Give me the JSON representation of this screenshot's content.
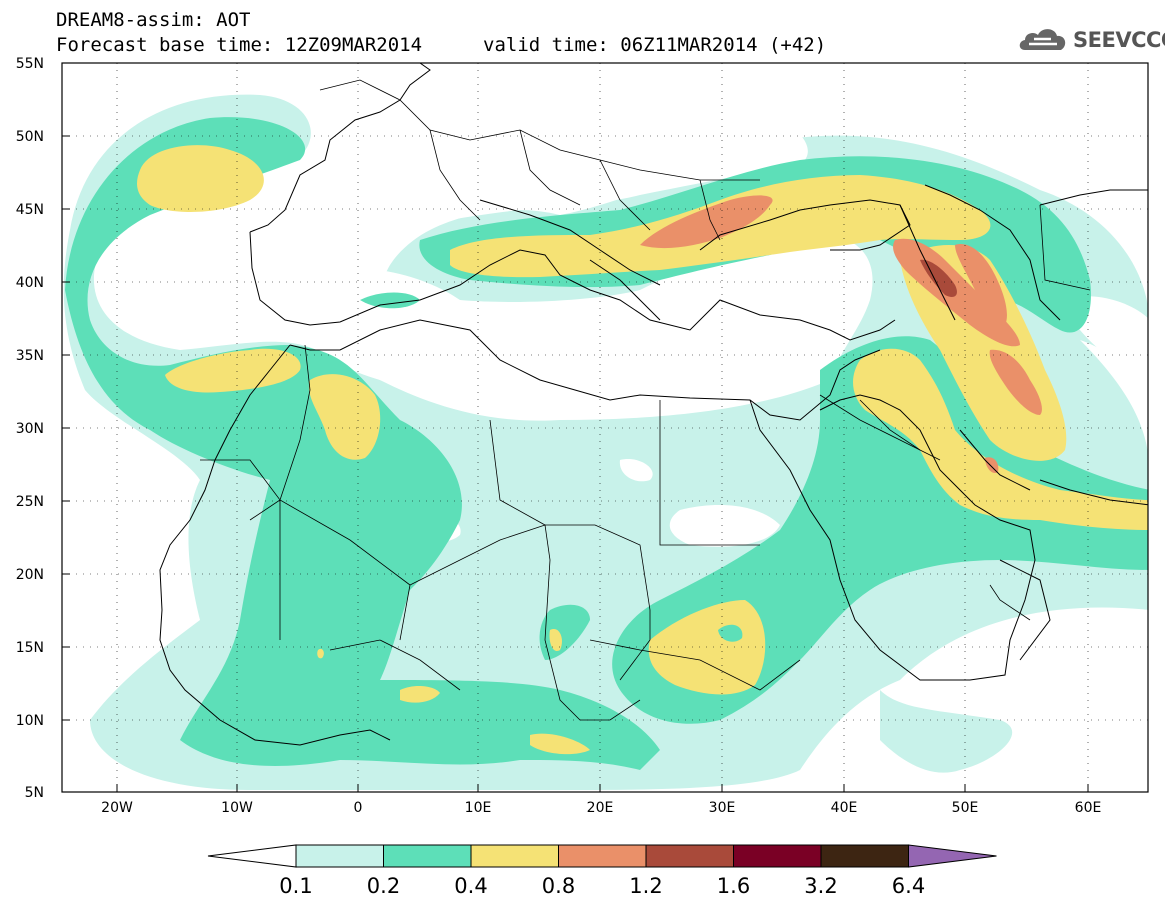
{
  "header": {
    "title": "DREAM8-assim: AOT",
    "base_time": "Forecast base time: 12Z09MAR2014",
    "valid_time": "valid time: 06Z11MAR2014 (+42)"
  },
  "logo": {
    "text": "SEEVCCC",
    "icon": "cloud-icon"
  },
  "map": {
    "projection": "lat-lon",
    "lon_range": [
      -25,
      65
    ],
    "lat_range": [
      5,
      55
    ],
    "lat_labels": [
      "55N",
      "50N",
      "45N",
      "40N",
      "35N",
      "30N",
      "25N",
      "20N",
      "15N",
      "10N",
      "5N"
    ],
    "lon_labels": [
      "20W",
      "10W",
      "0",
      "10E",
      "20E",
      "30E",
      "40E",
      "50E",
      "60E"
    ],
    "grid": "dotted"
  },
  "colorbar": {
    "labels": [
      "0.1",
      "0.2",
      "0.4",
      "0.8",
      "1.2",
      "1.6",
      "3.2",
      "6.4"
    ],
    "colors": [
      "#ffffff",
      "#c8f2ea",
      "#5ddfb8",
      "#f5e275",
      "#ea9069",
      "#a94a3a",
      "#7a0025",
      "#3d2512",
      "#9466b2"
    ]
  },
  "colors": {
    "aot_0_1": "#c8f2ea",
    "aot_0_2": "#5ddfb8",
    "aot_0_4": "#f5e275",
    "aot_0_8": "#ea9069",
    "aot_1_2": "#a94a3a"
  }
}
